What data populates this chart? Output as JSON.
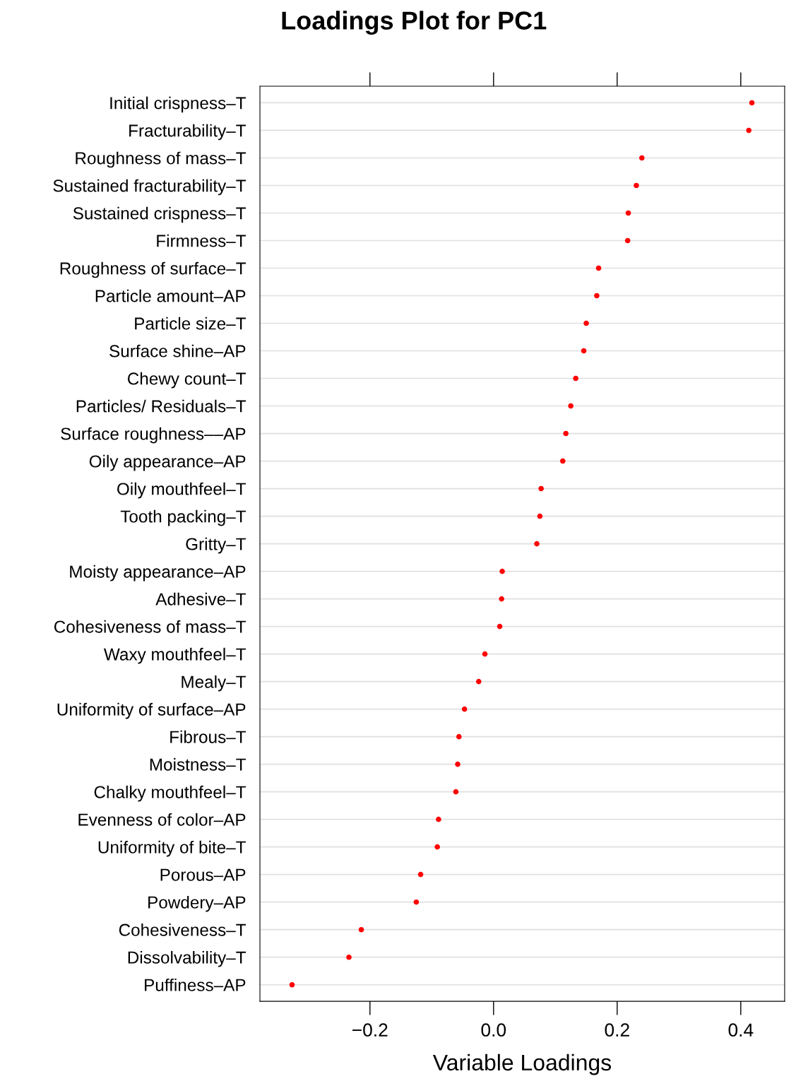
{
  "chart_data": {
    "type": "scatter",
    "title": "Loadings Plot for PC1",
    "xlabel": "Variable Loadings",
    "orientation": "horizontal",
    "categories": [
      "Initial crispness–T",
      "Fracturability–T",
      "Roughness of mass–T",
      "Sustained fracturability–T",
      "Sustained crispness–T",
      "Firmness–T",
      "Roughness of surface–T",
      "Particle amount–AP",
      "Particle size–T",
      "Surface shine–AP",
      "Chewy count–T",
      "Particles/ Residuals–T",
      "Surface roughness––AP",
      "Oily appearance–AP",
      "Oily mouthfeel–T",
      "Tooth packing–T",
      "Gritty–T",
      "Moisty appearance–AP",
      "Adhesive–T",
      "Cohesiveness of mass–T",
      "Waxy mouthfeel–T",
      "Mealy–T",
      "Uniformity of surface–AP",
      "Fibrous–T",
      "Moistness–T",
      "Chalky mouthfeel–T",
      "Evenness of color–AP",
      "Uniformity of bite–T",
      "Porous–AP",
      "Powdery–AP",
      "Cohesiveness–T",
      "Dissolvability–T",
      "Puffiness–AP"
    ],
    "values": [
      0.418,
      0.413,
      0.24,
      0.231,
      0.218,
      0.217,
      0.17,
      0.167,
      0.15,
      0.146,
      0.133,
      0.125,
      0.117,
      0.112,
      0.077,
      0.075,
      0.07,
      0.014,
      0.013,
      0.01,
      -0.014,
      -0.024,
      -0.047,
      -0.056,
      -0.058,
      -0.061,
      -0.089,
      -0.091,
      -0.118,
      -0.125,
      -0.214,
      -0.234,
      -0.326
    ],
    "color": "#ff0000",
    "marker": "circle",
    "xlim": [
      -0.378,
      0.471
    ],
    "xticks": [
      {
        "value": -0.2,
        "label": "−0.2"
      },
      {
        "value": 0.0,
        "label": "0.0"
      },
      {
        "value": 0.2,
        "label": "0.2"
      },
      {
        "value": 0.4,
        "label": "0.4"
      }
    ],
    "grid": "y"
  }
}
